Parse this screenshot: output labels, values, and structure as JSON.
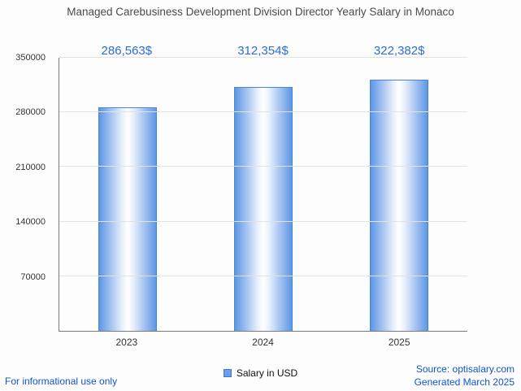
{
  "title": "Managed Carebusiness Development Division Director Yearly Salary in Monaco",
  "chart_data": {
    "type": "bar",
    "title": "Managed Carebusiness Development Division Director Yearly Salary in Monaco",
    "categories": [
      "2023",
      "2024",
      "2025"
    ],
    "values": [
      286563,
      312354,
      322382
    ],
    "value_labels": [
      "286,563$",
      "312,354$",
      "322,382$"
    ],
    "yticks": [
      70000,
      140000,
      210000,
      280000,
      350000
    ],
    "ylim": [
      0,
      350000
    ],
    "xlabel": "",
    "ylabel": "",
    "grid": true,
    "legend_position": "bottom",
    "series_name": "Salary in USD"
  },
  "legend": {
    "label": "Salary in USD",
    "marker_color": "#6d9eeb"
  },
  "footer": {
    "left_link": "For informational use only",
    "source_link": "Source: optisalary.com",
    "generated": "Generated March 2025"
  },
  "colors": {
    "value_label_blue": "#2b6cd9",
    "bar_border": "#4a86d8",
    "bar_fill_edge": "#5e97e6",
    "link_blue": "#1155cc",
    "gridline": "#e3e3e3",
    "title_text": "#4a4a4a"
  }
}
